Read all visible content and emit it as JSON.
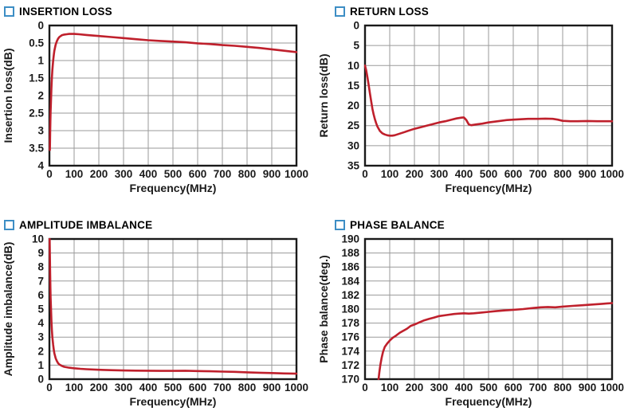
{
  "styles": {
    "curve_color": "#bf202c",
    "grid_color": "#9a9a9a",
    "axis_color": "#1a1a1a",
    "title_square_color": "#3d8ec5",
    "background": "#ffffff"
  },
  "chart_data": [
    {
      "type": "line",
      "title": "INSERTION LOSS",
      "xlabel": "Frequency(MHz)",
      "ylabel": "Insertion loss(dB)",
      "xlim": [
        0,
        1000
      ],
      "ylim": [
        0,
        4
      ],
      "y_inverted": true,
      "grid": true,
      "legend": "none",
      "x_ticks": [
        0,
        100,
        200,
        300,
        400,
        500,
        600,
        700,
        800,
        900,
        1000
      ],
      "x_tick_labels": [
        "0",
        "100",
        "200",
        "300",
        "400",
        "500",
        "600",
        "700",
        "800",
        "900",
        "1000"
      ],
      "y_ticks": [
        0,
        0.5,
        1,
        1.5,
        2,
        2.5,
        3,
        3.5,
        4
      ],
      "y_tick_labels": [
        "0",
        "0.5",
        "1",
        "1.5",
        "2",
        "2.5",
        "3",
        "3.5",
        "4"
      ],
      "series": [
        {
          "points": [
            [
              2,
              3.55
            ],
            [
              3,
              3.1
            ],
            [
              4,
              2.75
            ],
            [
              5,
              2.45
            ],
            [
              6,
              2.2
            ],
            [
              8,
              1.8
            ],
            [
              10,
              1.5
            ],
            [
              12,
              1.27
            ],
            [
              15,
              1.0
            ],
            [
              18,
              0.82
            ],
            [
              20,
              0.72
            ],
            [
              25,
              0.55
            ],
            [
              30,
              0.45
            ],
            [
              35,
              0.38
            ],
            [
              40,
              0.33
            ],
            [
              50,
              0.28
            ],
            [
              60,
              0.26
            ],
            [
              70,
              0.25
            ],
            [
              80,
              0.24
            ],
            [
              100,
              0.24
            ],
            [
              120,
              0.25
            ],
            [
              150,
              0.27
            ],
            [
              200,
              0.3
            ],
            [
              250,
              0.33
            ],
            [
              300,
              0.36
            ],
            [
              350,
              0.39
            ],
            [
              400,
              0.42
            ],
            [
              450,
              0.44
            ],
            [
              500,
              0.46
            ],
            [
              550,
              0.48
            ],
            [
              600,
              0.51
            ],
            [
              650,
              0.53
            ],
            [
              700,
              0.56
            ],
            [
              750,
              0.58
            ],
            [
              800,
              0.61
            ],
            [
              850,
              0.64
            ],
            [
              900,
              0.68
            ],
            [
              950,
              0.72
            ],
            [
              1000,
              0.76
            ]
          ]
        }
      ]
    },
    {
      "type": "line",
      "title": "RETURN LOSS",
      "xlabel": "Frequency(MHz)",
      "ylabel": "Return loss(dB)",
      "xlim": [
        0,
        1000
      ],
      "ylim": [
        0,
        35
      ],
      "y_inverted": true,
      "grid": true,
      "legend": "none",
      "x_ticks": [
        0,
        100,
        200,
        300,
        400,
        500,
        600,
        700,
        800,
        900,
        1000
      ],
      "x_tick_labels": [
        "0",
        "100",
        "200",
        "300",
        "400",
        "500",
        "600",
        "700",
        "800",
        "900",
        "1000"
      ],
      "y_ticks": [
        0,
        5,
        10,
        15,
        20,
        25,
        30,
        35
      ],
      "y_tick_labels": [
        "0",
        "5",
        "10",
        "15",
        "20",
        "25",
        "30",
        "35"
      ],
      "series": [
        {
          "points": [
            [
              0,
              10
            ],
            [
              5,
              11.2
            ],
            [
              10,
              13
            ],
            [
              15,
              15
            ],
            [
              20,
              17
            ],
            [
              25,
              19
            ],
            [
              30,
              20.8
            ],
            [
              35,
              22.2
            ],
            [
              40,
              23.4
            ],
            [
              45,
              24.4
            ],
            [
              50,
              25.2
            ],
            [
              60,
              26.3
            ],
            [
              70,
              26.9
            ],
            [
              80,
              27.2
            ],
            [
              90,
              27.4
            ],
            [
              100,
              27.5
            ],
            [
              110,
              27.5
            ],
            [
              120,
              27.4
            ],
            [
              130,
              27.2
            ],
            [
              140,
              27.0
            ],
            [
              160,
              26.6
            ],
            [
              180,
              26.2
            ],
            [
              200,
              25.8
            ],
            [
              225,
              25.4
            ],
            [
              250,
              25.0
            ],
            [
              275,
              24.6
            ],
            [
              300,
              24.2
            ],
            [
              325,
              23.9
            ],
            [
              350,
              23.5
            ],
            [
              370,
              23.2
            ],
            [
              390,
              23.0
            ],
            [
              400,
              22.95
            ],
            [
              410,
              23.6
            ],
            [
              420,
              24.7
            ],
            [
              430,
              24.9
            ],
            [
              450,
              24.7
            ],
            [
              475,
              24.5
            ],
            [
              500,
              24.2
            ],
            [
              525,
              24.0
            ],
            [
              550,
              23.8
            ],
            [
              575,
              23.6
            ],
            [
              600,
              23.5
            ],
            [
              630,
              23.4
            ],
            [
              660,
              23.3
            ],
            [
              700,
              23.3
            ],
            [
              730,
              23.25
            ],
            [
              760,
              23.3
            ],
            [
              780,
              23.5
            ],
            [
              800,
              23.8
            ],
            [
              830,
              23.9
            ],
            [
              860,
              23.9
            ],
            [
              900,
              23.85
            ],
            [
              940,
              23.9
            ],
            [
              970,
              23.9
            ],
            [
              1000,
              23.9
            ]
          ]
        }
      ]
    },
    {
      "type": "line",
      "title": "AMPLITUDE IMBALANCE",
      "xlabel": "Frequency(MHz)",
      "ylabel": "Amplitude imbalance(dB)",
      "xlim": [
        0,
        1000
      ],
      "ylim": [
        0,
        10
      ],
      "y_inverted": false,
      "grid": true,
      "legend": "none",
      "x_ticks": [
        0,
        100,
        200,
        300,
        400,
        500,
        600,
        700,
        800,
        900,
        1000
      ],
      "x_tick_labels": [
        "0",
        "100",
        "200",
        "300",
        "400",
        "500",
        "600",
        "700",
        "800",
        "900",
        "1000"
      ],
      "y_ticks": [
        0,
        1,
        2,
        3,
        4,
        5,
        6,
        7,
        8,
        9,
        10
      ],
      "y_tick_labels": [
        "0",
        "1",
        "2",
        "3",
        "4",
        "5",
        "6",
        "7",
        "8",
        "9",
        "10"
      ],
      "series": [
        {
          "points": [
            [
              1,
              10
            ],
            [
              2,
              8.8
            ],
            [
              3,
              7.6
            ],
            [
              4,
              6.6
            ],
            [
              5,
              5.8
            ],
            [
              6,
              5.2
            ],
            [
              8,
              4.2
            ],
            [
              10,
              3.5
            ],
            [
              12,
              3.0
            ],
            [
              15,
              2.45
            ],
            [
              18,
              2.05
            ],
            [
              20,
              1.85
            ],
            [
              25,
              1.5
            ],
            [
              30,
              1.3
            ],
            [
              35,
              1.15
            ],
            [
              40,
              1.05
            ],
            [
              50,
              0.95
            ],
            [
              60,
              0.88
            ],
            [
              80,
              0.82
            ],
            [
              100,
              0.78
            ],
            [
              125,
              0.74
            ],
            [
              150,
              0.71
            ],
            [
              200,
              0.67
            ],
            [
              250,
              0.64
            ],
            [
              300,
              0.62
            ],
            [
              350,
              0.61
            ],
            [
              400,
              0.6
            ],
            [
              450,
              0.59
            ],
            [
              500,
              0.59
            ],
            [
              550,
              0.6
            ],
            [
              600,
              0.58
            ],
            [
              650,
              0.56
            ],
            [
              700,
              0.54
            ],
            [
              750,
              0.52
            ],
            [
              800,
              0.49
            ],
            [
              850,
              0.46
            ],
            [
              900,
              0.44
            ],
            [
              950,
              0.41
            ],
            [
              1000,
              0.39
            ]
          ]
        }
      ]
    },
    {
      "type": "line",
      "title": "PHASE BALANCE",
      "xlabel": "Frequency(MHz)",
      "ylabel": "Phase balance(deg.)",
      "xlim": [
        0,
        1000
      ],
      "ylim": [
        170,
        190
      ],
      "y_inverted": false,
      "grid": true,
      "legend": "none",
      "x_ticks": [
        0,
        100,
        200,
        300,
        400,
        500,
        600,
        700,
        800,
        900,
        1000
      ],
      "x_tick_labels": [
        "0",
        "100",
        "200",
        "300",
        "400",
        "500",
        "600",
        "700",
        "800",
        "900",
        "1000"
      ],
      "y_ticks": [
        170,
        172,
        174,
        176,
        178,
        180,
        182,
        184,
        186,
        188,
        190
      ],
      "y_tick_labels": [
        "170",
        "172",
        "174",
        "176",
        "178",
        "180",
        "182",
        "184",
        "186",
        "188",
        "190"
      ],
      "series": [
        {
          "points": [
            [
              55,
              170
            ],
            [
              58,
              171
            ],
            [
              62,
              172
            ],
            [
              67,
              173
            ],
            [
              73,
              173.9
            ],
            [
              80,
              174.6
            ],
            [
              90,
              175.1
            ],
            [
              100,
              175.5
            ],
            [
              112,
              175.9
            ],
            [
              125,
              176.2
            ],
            [
              140,
              176.6
            ],
            [
              155,
              176.9
            ],
            [
              170,
              177.2
            ],
            [
              185,
              177.6
            ],
            [
              200,
              177.8
            ],
            [
              220,
              178.1
            ],
            [
              240,
              178.4
            ],
            [
              260,
              178.6
            ],
            [
              280,
              178.8
            ],
            [
              300,
              179.0
            ],
            [
              330,
              179.15
            ],
            [
              360,
              179.3
            ],
            [
              380,
              179.35
            ],
            [
              400,
              179.4
            ],
            [
              420,
              179.35
            ],
            [
              440,
              179.4
            ],
            [
              470,
              179.5
            ],
            [
              500,
              179.6
            ],
            [
              530,
              179.7
            ],
            [
              560,
              179.8
            ],
            [
              600,
              179.9
            ],
            [
              640,
              180.0
            ],
            [
              680,
              180.15
            ],
            [
              710,
              180.25
            ],
            [
              740,
              180.3
            ],
            [
              770,
              180.25
            ],
            [
              800,
              180.35
            ],
            [
              840,
              180.45
            ],
            [
              880,
              180.55
            ],
            [
              920,
              180.65
            ],
            [
              960,
              180.75
            ],
            [
              1000,
              180.85
            ]
          ]
        }
      ]
    }
  ]
}
